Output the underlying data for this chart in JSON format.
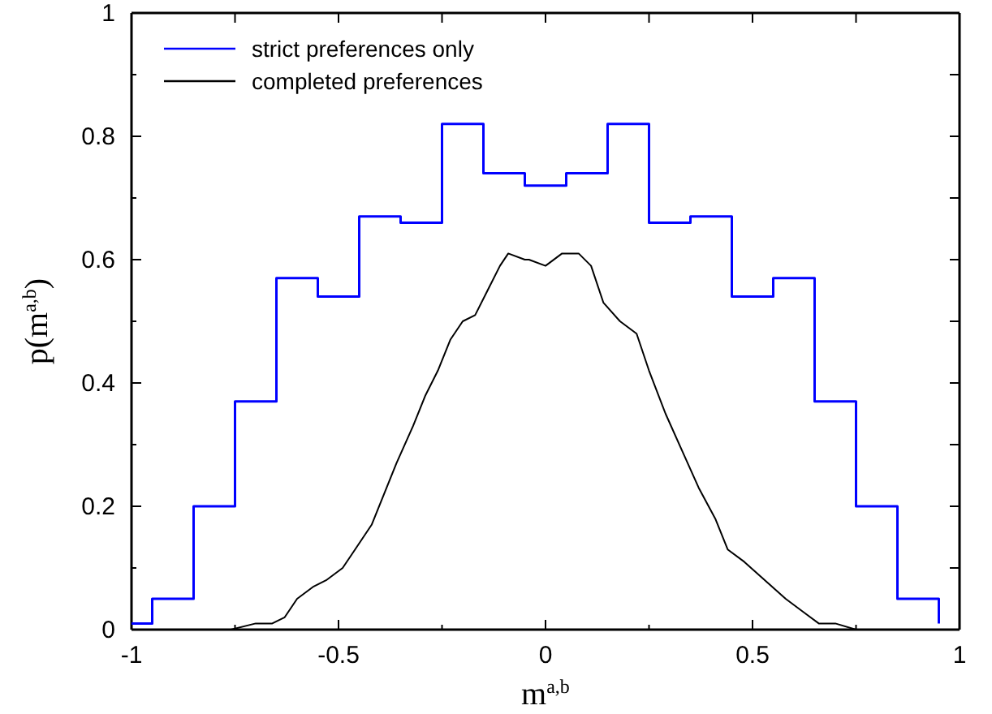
{
  "chart_data": {
    "type": "line",
    "xlabel": "m$^{a,b}$",
    "ylabel": "p(m$^{a,b}$)",
    "xlim": [
      -1,
      1
    ],
    "ylim": [
      0,
      1
    ],
    "xticks": [
      -1,
      {
        "value": -0.75,
        "label": null
      },
      -0.5,
      {
        "value": -0.25,
        "label": null
      },
      0,
      {
        "value": 0.25,
        "label": null
      },
      0.5,
      {
        "value": 0.75,
        "label": null
      },
      1
    ],
    "yticks": [
      0,
      {
        "value": 0.1,
        "label": null
      },
      0.2,
      {
        "value": 0.3,
        "label": null
      },
      0.4,
      {
        "value": 0.5,
        "label": null
      },
      0.6,
      {
        "value": 0.7,
        "label": null
      },
      0.8,
      {
        "value": 0.9,
        "label": null
      },
      1
    ],
    "grid": false,
    "legend": "top left",
    "marker": "none",
    "line_style": "solid",
    "series": [
      {
        "name": "strict preferences only",
        "type": "step",
        "color": "#0000ff",
        "x": [
          -1,
          -0.95,
          -0.85,
          -0.75,
          -0.65,
          -0.55,
          -0.45,
          -0.35,
          -0.25,
          -0.15,
          -0.05,
          0.05,
          0.15,
          0.25,
          0.35,
          0.45,
          0.55,
          0.65,
          0.75,
          0.85,
          0.95
        ],
        "values": [
          0.01,
          0.05,
          0.2,
          0.37,
          0.57,
          0.54,
          0.67,
          0.66,
          0.82,
          0.74,
          0.72,
          0.74,
          0.82,
          0.66,
          0.67,
          0.54,
          0.57,
          0.37,
          0.2,
          0.05,
          0.01
        ]
      },
      {
        "name": "completed preferences",
        "type": "line",
        "color": "#000000",
        "x": [
          -0.85,
          -0.76,
          -0.7,
          -0.66,
          -0.63,
          -0.6,
          -0.56,
          -0.53,
          -0.49,
          -0.46,
          -0.42,
          -0.39,
          -0.36,
          -0.32,
          -0.29,
          -0.26,
          -0.23,
          -0.2,
          -0.17,
          -0.14,
          -0.11,
          -0.09,
          -0.05,
          -0.04,
          0,
          0.04,
          0.08,
          0.11,
          0.14,
          0.18,
          0.22,
          0.25,
          0.29,
          0.33,
          0.37,
          0.41,
          0.44,
          0.48,
          0.53,
          0.58,
          0.62,
          0.66,
          0.7,
          0.75,
          0.81
        ],
        "values": [
          0,
          0,
          0.01,
          0.01,
          0.02,
          0.05,
          0.07,
          0.08,
          0.1,
          0.13,
          0.17,
          0.22,
          0.27,
          0.33,
          0.38,
          0.42,
          0.47,
          0.5,
          0.51,
          0.55,
          0.59,
          0.61,
          0.6,
          0.6,
          0.59,
          0.61,
          0.61,
          0.59,
          0.53,
          0.5,
          0.48,
          0.42,
          0.35,
          0.29,
          0.23,
          0.18,
          0.13,
          0.11,
          0.08,
          0.05,
          0.03,
          0.01,
          0.01,
          0,
          0
        ]
      }
    ]
  }
}
